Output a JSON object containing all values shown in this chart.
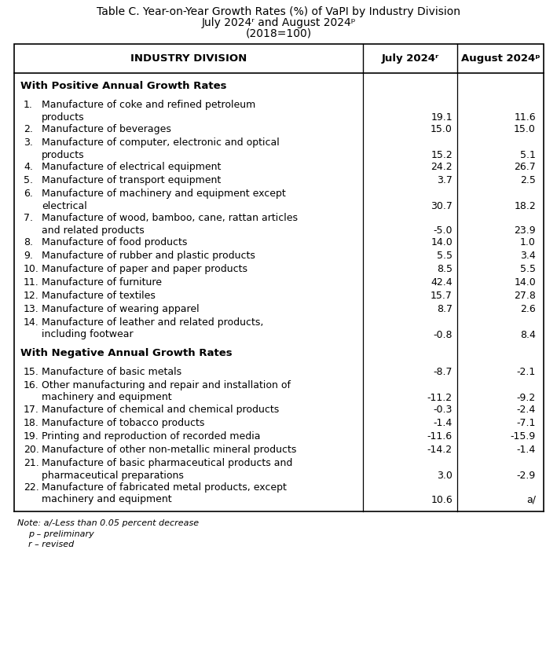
{
  "title_line1": "Table C. Year-on-Year Growth Rates (%) of VaPI by Industry Division",
  "title_line2": "July 2024ʳ and August 2024ᵖ",
  "title_line3": "(2018=100)",
  "col_headers": [
    "INDUSTRY DIVISION",
    "July 2024ʳ",
    "August 2024ᵖ"
  ],
  "section1_title": "With Positive Annual Growth Rates",
  "section2_title": "With Negative Annual Growth Rates",
  "rows": [
    {
      "num": "1.",
      "line1": "Manufacture of coke and refined petroleum",
      "line2": "products",
      "july": "19.1",
      "aug": "11.6",
      "wrap": true
    },
    {
      "num": "2.",
      "line1": "Manufacture of beverages",
      "line2": "",
      "july": "15.0",
      "aug": "15.0",
      "wrap": false
    },
    {
      "num": "3.",
      "line1": "Manufacture of computer, electronic and optical",
      "line2": "products",
      "july": "15.2",
      "aug": "5.1",
      "wrap": true
    },
    {
      "num": "4.",
      "line1": "Manufacture of electrical equipment",
      "line2": "",
      "july": "24.2",
      "aug": "26.7",
      "wrap": false
    },
    {
      "num": "5.",
      "line1": "Manufacture of transport equipment",
      "line2": "",
      "july": "3.7",
      "aug": "2.5",
      "wrap": false
    },
    {
      "num": "6.",
      "line1": "Manufacture of machinery and equipment except",
      "line2": "electrical",
      "july": "30.7",
      "aug": "18.2",
      "wrap": true
    },
    {
      "num": "7.",
      "line1": "Manufacture of wood, bamboo, cane, rattan articles",
      "line2": "and related products",
      "july": "-5.0",
      "aug": "23.9",
      "wrap": true
    },
    {
      "num": "8.",
      "line1": "Manufacture of food products",
      "line2": "",
      "july": "14.0",
      "aug": "1.0",
      "wrap": false
    },
    {
      "num": "9.",
      "line1": "Manufacture of rubber and plastic products",
      "line2": "",
      "july": "5.5",
      "aug": "3.4",
      "wrap": false
    },
    {
      "num": "10.",
      "line1": "Manufacture of paper and paper products",
      "line2": "",
      "july": "8.5",
      "aug": "5.5",
      "wrap": false
    },
    {
      "num": "11.",
      "line1": "Manufacture of furniture",
      "line2": "",
      "july": "42.4",
      "aug": "14.0",
      "wrap": false
    },
    {
      "num": "12.",
      "line1": "Manufacture of textiles",
      "line2": "",
      "july": "15.7",
      "aug": "27.8",
      "wrap": false
    },
    {
      "num": "13.",
      "line1": "Manufacture of wearing apparel",
      "line2": "",
      "july": "8.7",
      "aug": "2.6",
      "wrap": false
    },
    {
      "num": "14.",
      "line1": "Manufacture of leather and related products,",
      "line2": "including footwear",
      "july": "-0.8",
      "aug": "8.4",
      "wrap": true
    }
  ],
  "rows2": [
    {
      "num": "15.",
      "line1": "Manufacture of basic metals",
      "line2": "",
      "july": "-8.7",
      "aug": "-2.1",
      "wrap": false
    },
    {
      "num": "16.",
      "line1": "Other manufacturing and repair and installation of",
      "line2": "machinery and equipment",
      "july": "-11.2",
      "aug": "-9.2",
      "wrap": true
    },
    {
      "num": "17.",
      "line1": "Manufacture of chemical and chemical products",
      "line2": "",
      "july": "-0.3",
      "aug": "-2.4",
      "wrap": false
    },
    {
      "num": "18.",
      "line1": "Manufacture of tobacco products",
      "line2": "",
      "july": "-1.4",
      "aug": "-7.1",
      "wrap": false
    },
    {
      "num": "19.",
      "line1": "Printing and reproduction of recorded media",
      "line2": "",
      "july": "-11.6",
      "aug": "-15.9",
      "wrap": false
    },
    {
      "num": "20.",
      "line1": "Manufacture of other non-metallic mineral products",
      "line2": "",
      "july": "-14.2",
      "aug": "-1.4",
      "wrap": false
    },
    {
      "num": "21.",
      "line1": "Manufacture of basic pharmaceutical products and",
      "line2": "pharmaceutical preparations",
      "july": "3.0",
      "aug": "-2.9",
      "wrap": true
    },
    {
      "num": "22.",
      "line1": "Manufacture of fabricated metal products, except",
      "line2": "machinery and equipment",
      "july": "10.6",
      "aug": "a/",
      "wrap": true
    }
  ],
  "note": "Note: a/-Less than 0.05 percent decrease",
  "note2": "p – preliminary",
  "note3": "r – revised",
  "bg_color": "#ffffff",
  "text_color": "#000000",
  "title_fontsize": 10.0,
  "header_fontsize": 9.5,
  "body_fontsize": 9.0,
  "note_fontsize": 8.0
}
